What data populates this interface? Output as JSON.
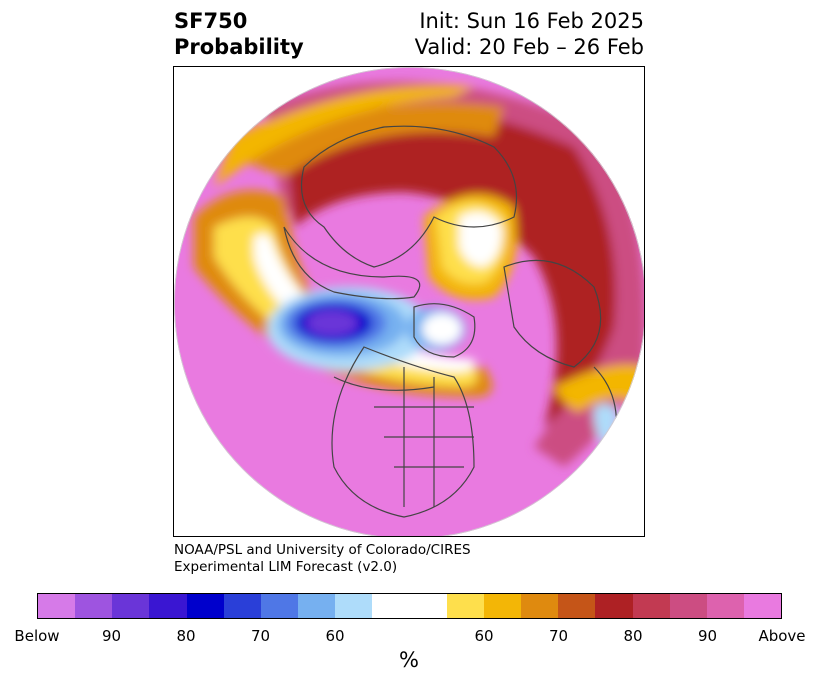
{
  "header": {
    "variable": "SF750",
    "product": "Probability",
    "init": "Init: Sun 16 Feb 2025",
    "valid": "Valid: 20 Feb – 26 Feb"
  },
  "credit": {
    "line1": "NOAA/PSL and University of Colorado/CIRES",
    "line2": "Experimental LIM Forecast (v2.0)"
  },
  "colorbar": {
    "unit": "%",
    "colors": [
      "#d67ae8",
      "#9e54e0",
      "#6a35d8",
      "#3a16d2",
      "#0000cc",
      "#2a3fd8",
      "#4f77e6",
      "#76b0f0",
      "#aedcfa",
      "#ffffff",
      "#ffffff",
      "#fedf4c",
      "#f3b606",
      "#df8a0f",
      "#c55518",
      "#ae2124",
      "#c23a52",
      "#cc4d82",
      "#dd62ae",
      "#e97ae0"
    ],
    "labels": [
      "Below",
      "90",
      "80",
      "70",
      "60",
      "60",
      "70",
      "80",
      "90",
      "Above"
    ]
  },
  "map": {
    "projection": "north polar stereographic",
    "legend": [
      "Below normal probability (blue-purple)",
      "Above normal probability (yellow-red-pink)"
    ]
  }
}
